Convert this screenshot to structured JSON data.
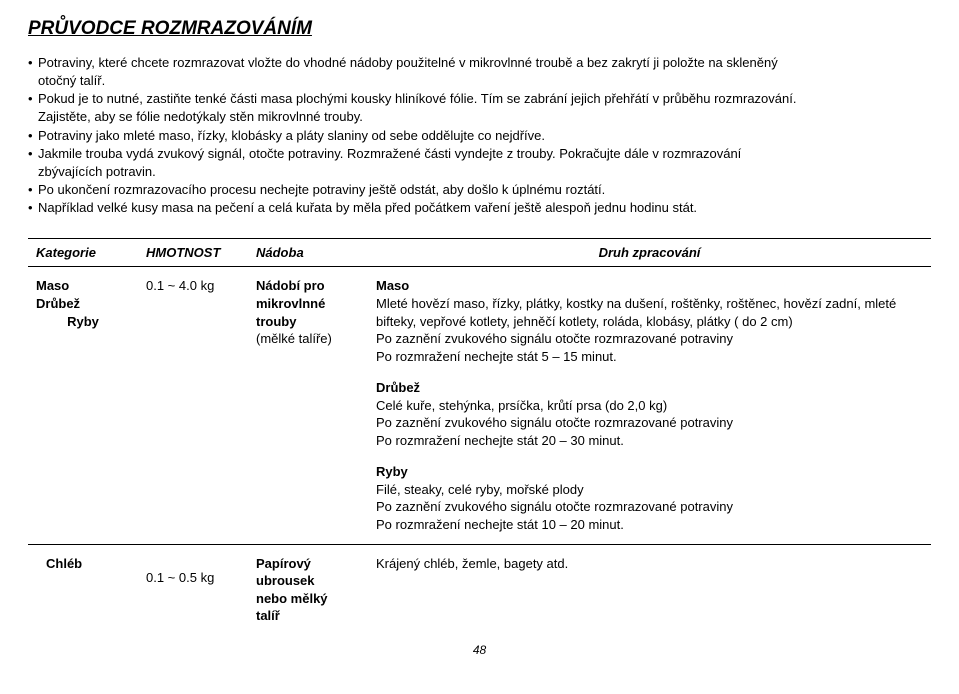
{
  "title": "PRŮVODCE ROZMRAZOVÁNÍM",
  "bullets": [
    {
      "dot": true,
      "text": "Potraviny, které chcete rozmrazovat vložte do vhodné nádoby použitelné v mikrovlnné troubě a bez zakrytí ji položte na skleněný",
      "indent": false
    },
    {
      "dot": false,
      "text": "otočný talíř.",
      "indent": true
    },
    {
      "dot": true,
      "text": "Pokud je to nutné, zastiňte tenké části masa plochými kousky hliníkové fólie. Tím se zabrání jejich přehřátí v průběhu rozmrazování.",
      "indent": false
    },
    {
      "dot": false,
      "text": "Zajistěte, aby se fólie nedotýkaly stěn mikrovlnné trouby.",
      "indent": true
    },
    {
      "dot": true,
      "text": "Potraviny jako mleté maso, řízky, klobásky a pláty slaniny od sebe oddělujte co nejdříve.",
      "indent": false
    },
    {
      "dot": true,
      "text": "Jakmile trouba vydá zvukový signál, otočte potraviny. Rozmražené části vyndejte z trouby. Pokračujte dále v rozmrazování",
      "indent": false
    },
    {
      "dot": false,
      "text": "zbývajících potravin.",
      "indent": true
    },
    {
      "dot": true,
      "text": "Po ukončení rozmrazovacího procesu nechejte potraviny ještě odstát, aby došlo k úplnému roztátí.",
      "indent": false
    },
    {
      "dot": true,
      "text": "Například velké kusy masa na pečení a celá kuřata by měla před počátkem vaření ještě alespoň jednu hodinu stát.",
      "indent": false
    }
  ],
  "headers": {
    "category": "Kategorie",
    "weight": "HMOTNOST",
    "vessel": "Nádoba",
    "processing": "Druh zpracování"
  },
  "row1": {
    "cat_l1": "Maso",
    "cat_l2": "Drůbež",
    "cat_l3": "Ryby",
    "weight": "0.1 ~ 4.0 kg",
    "vessel_l1": "Nádobí pro",
    "vessel_l2": "mikrovlnné",
    "vessel_l3": "trouby",
    "vessel_l4": "(mělké talíře)",
    "p1_h": "Maso",
    "p1_a": "Mleté hovězí maso, řízky, plátky, kostky na dušení, roštěnky, roštěnec, hovězí zadní, mleté",
    "p1_b": "bifteky, vepřové kotlety, jehněčí kotlety, roláda, klobásy, plátky ( do 2 cm)",
    "p1_c": "Po zaznění zvukového signálu otočte rozmrazované potraviny",
    "p1_d": "Po rozmražení nechejte stát 5 – 15 minut.",
    "p2_h": "Drůbež",
    "p2_a": "Celé kuře, stehýnka, prsíčka, krůtí prsa (do 2,0 kg)",
    "p2_b": "Po zaznění zvukového signálu otočte rozmrazované potraviny",
    "p2_c": "Po rozmražení nechejte stát 20 – 30 minut.",
    "p3_h": "Ryby",
    "p3_a": "Filé, steaky, celé ryby, mořské plody",
    "p3_b": "Po zaznění zvukového signálu otočte rozmrazované potraviny",
    "p3_c": "Po rozmražení nechejte stát 10 – 20 minut."
  },
  "row2": {
    "cat": "Chléb",
    "weight": "0.1 ~ 0.5 kg",
    "vessel_l1": "Papírový",
    "vessel_l2": "ubrousek",
    "vessel_l3": "nebo mělký",
    "vessel_l4": "talíř",
    "text": "Krájený chléb, žemle, bagety atd."
  },
  "pagenum": "48",
  "colwidths": {
    "c1": "110",
    "c2": "110",
    "c3": "120"
  }
}
